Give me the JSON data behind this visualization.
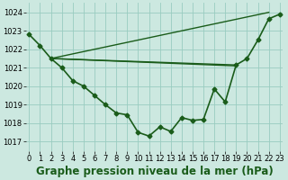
{
  "title": "Graphe pression niveau de la mer (hPa)",
  "ylabel_values": [
    1017,
    1018,
    1019,
    1020,
    1021,
    1022,
    1023,
    1024
  ],
  "xlim": [
    -0.3,
    23.3
  ],
  "ylim": [
    1016.5,
    1024.5
  ],
  "xticks": [
    0,
    1,
    2,
    3,
    4,
    5,
    6,
    7,
    8,
    9,
    10,
    11,
    12,
    13,
    14,
    15,
    16,
    17,
    18,
    19,
    20,
    21,
    22,
    23
  ],
  "background_color": "#cce8e0",
  "grid_color": "#99ccc0",
  "line_color": "#1a5c1a",
  "series": [
    {
      "x": [
        0,
        1,
        2,
        3,
        4,
        5,
        6,
        7,
        8,
        9,
        10,
        11,
        12,
        13,
        14,
        15,
        16,
        17,
        18,
        19,
        20,
        21,
        22,
        23
      ],
      "y": [
        1022.8,
        1022.2,
        1021.5,
        1021.0,
        1020.3,
        1020.0,
        1019.5,
        1019.0,
        1018.55,
        1018.45,
        1017.5,
        1017.3,
        1017.8,
        1017.55,
        1018.3,
        1018.15,
        1018.2,
        1019.85,
        1019.15,
        1021.15,
        1021.5,
        1022.5,
        1023.65,
        1023.9
      ],
      "lw": 1.2,
      "marker": true
    },
    {
      "x": [
        2,
        22
      ],
      "y": [
        1021.5,
        1024.0
      ],
      "lw": 1.0,
      "marker": false
    },
    {
      "x": [
        2,
        19
      ],
      "y": [
        1021.5,
        1021.15
      ],
      "lw": 1.0,
      "marker": false
    },
    {
      "x": [
        2,
        19
      ],
      "y": [
        1021.5,
        1021.1
      ],
      "lw": 1.0,
      "marker": false
    }
  ],
  "title_fontsize": 8.5,
  "tick_fontsize": 6.0,
  "figsize": [
    3.2,
    2.0
  ],
  "dpi": 100
}
